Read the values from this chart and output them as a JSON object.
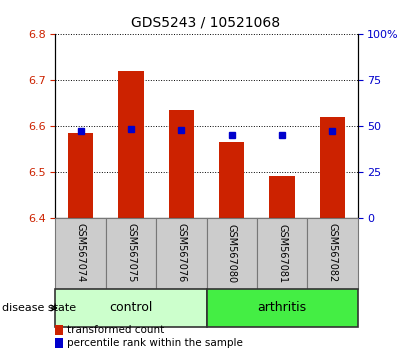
{
  "title": "GDS5243 / 10521068",
  "samples": [
    "GSM567074",
    "GSM567075",
    "GSM567076",
    "GSM567080",
    "GSM567081",
    "GSM567082"
  ],
  "bar_values": [
    6.585,
    6.718,
    6.635,
    6.565,
    6.49,
    6.618
  ],
  "percentile_values": [
    47,
    48,
    47.5,
    45,
    45,
    47
  ],
  "bar_bottom": 6.4,
  "ylim_left": [
    6.4,
    6.8
  ],
  "ylim_right": [
    0,
    100
  ],
  "yticks_left": [
    6.4,
    6.5,
    6.6,
    6.7,
    6.8
  ],
  "yticks_right": [
    0,
    25,
    50,
    75,
    100
  ],
  "ytick_labels_right": [
    "0",
    "25",
    "50",
    "75",
    "100%"
  ],
  "bar_color": "#cc2200",
  "percentile_color": "#0000cc",
  "groups": [
    {
      "label": "control",
      "indices": [
        0,
        1,
        2
      ],
      "color": "#ccffcc"
    },
    {
      "label": "arthritis",
      "indices": [
        3,
        4,
        5
      ],
      "color": "#44ee44"
    }
  ],
  "group_label_text": "disease state",
  "bar_width": 0.5,
  "title_fontsize": 10,
  "tick_fontsize": 8,
  "label_area_color": "#cccccc",
  "legend_square_color_bar": "#cc2200",
  "legend_square_color_pct": "#0000cc",
  "legend_label_bar": "transformed count",
  "legend_label_pct": "percentile rank within the sample"
}
